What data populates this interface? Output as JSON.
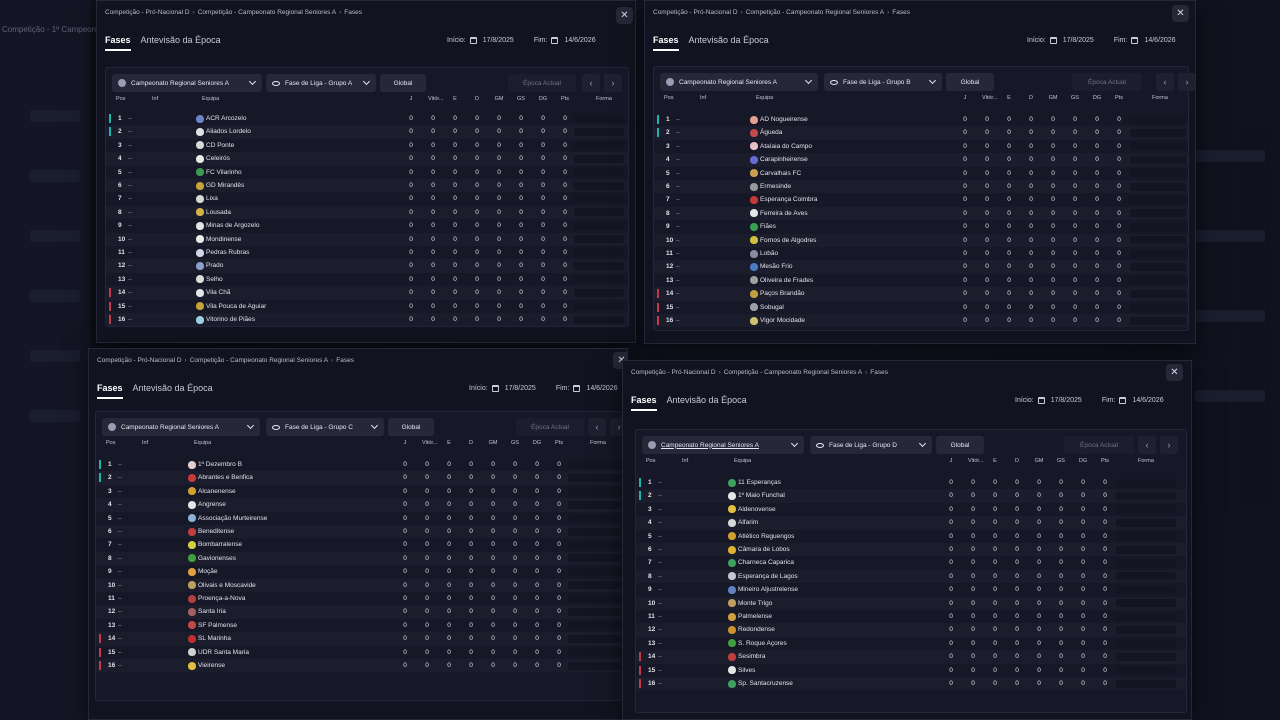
{
  "background": {
    "title_left": "Competição - 1º Campeonato"
  },
  "stats_headers": [
    "Pos",
    "Inf",
    "Equipa",
    "J",
    "Vitór...",
    "E",
    "D",
    "GM",
    "GS",
    "DG",
    "Pts",
    "Forma"
  ],
  "windows": [
    {
      "breadcrumb": [
        "Competição - Pró-Nacional D",
        "Competição - Campeonato Regional Seniores A",
        "Fases"
      ],
      "tabs": [
        "Fases",
        "Antevisão da Época"
      ],
      "start_label": "Início:",
      "start_date": "17/8/2025",
      "end_label": "Fim:",
      "end_date": "14/6/2026",
      "competition": "Campeonato Regional Seniores A",
      "stage": "Fase de Liga - Grupo A",
      "scope": "Global",
      "season": "Época Actual",
      "rows": [
        {
          "pos": "1",
          "team": "ACR Arcozelo",
          "zone": "prom",
          "crest": "#6b83c9"
        },
        {
          "pos": "2",
          "team": "Aliados Lordelo",
          "zone": "prom",
          "crest": "#e0e0e0"
        },
        {
          "pos": "3",
          "team": "CD Ponte",
          "zone": "",
          "crest": "#d8d8d8"
        },
        {
          "pos": "4",
          "team": "Celeirós",
          "zone": "",
          "crest": "#eaeaea"
        },
        {
          "pos": "5",
          "team": "FC Vilarinho",
          "zone": "",
          "crest": "#3c9a4f"
        },
        {
          "pos": "6",
          "team": "GD Mirandês",
          "zone": "",
          "crest": "#c9a23a"
        },
        {
          "pos": "7",
          "team": "Lixa",
          "zone": "",
          "crest": "#d9d9d9"
        },
        {
          "pos": "8",
          "team": "Lousada",
          "zone": "",
          "crest": "#d4b24a"
        },
        {
          "pos": "9",
          "team": "Minas de Argozelo",
          "zone": "",
          "crest": "#e3e3e3"
        },
        {
          "pos": "10",
          "team": "Mondinense",
          "zone": "",
          "crest": "#ededed"
        },
        {
          "pos": "11",
          "team": "Pedras Rubras",
          "zone": "",
          "crest": "#cfd6e6"
        },
        {
          "pos": "12",
          "team": "Prado",
          "zone": "",
          "crest": "#8aa0c8"
        },
        {
          "pos": "13",
          "team": "Selho",
          "zone": "",
          "crest": "#dcdcdc"
        },
        {
          "pos": "14",
          "team": "Vila Chã",
          "zone": "rel",
          "crest": "#e6e6e6"
        },
        {
          "pos": "15",
          "team": "Vila Pouca de Aguiar",
          "zone": "rel",
          "crest": "#c8a13c"
        },
        {
          "pos": "16",
          "team": "Vitorino de Piães",
          "zone": "rel",
          "crest": "#9fd0e0"
        }
      ]
    },
    {
      "breadcrumb": [
        "Competição - Pró-Nacional D",
        "Competição - Campeonato Regional Seniores A",
        "Fases"
      ],
      "tabs": [
        "Fases",
        "Antevisão da Época"
      ],
      "start_label": "Início:",
      "start_date": "17/8/2025",
      "end_label": "Fim:",
      "end_date": "14/6/2026",
      "competition": "Campeonato Regional Seniores A",
      "stage": "Fase de Liga - Grupo B",
      "scope": "Global",
      "season": "Época Actual",
      "rows": [
        {
          "pos": "1",
          "team": "AD Nogueirense",
          "zone": "prom",
          "crest": "#e4a090"
        },
        {
          "pos": "2",
          "team": "Águeda",
          "zone": "prom",
          "crest": "#c24a4a"
        },
        {
          "pos": "3",
          "team": "Ataíaia do Campo",
          "zone": "",
          "crest": "#e6c0c8"
        },
        {
          "pos": "4",
          "team": "Carapinheirense",
          "zone": "",
          "crest": "#6a6ad0"
        },
        {
          "pos": "5",
          "team": "Carvalhais FC",
          "zone": "",
          "crest": "#c8a050"
        },
        {
          "pos": "6",
          "team": "Ermesinde",
          "zone": "",
          "crest": "#9a9a9a"
        },
        {
          "pos": "7",
          "team": "Esperança Coimbra",
          "zone": "",
          "crest": "#c23a3a"
        },
        {
          "pos": "8",
          "team": "Ferreira de Aves",
          "zone": "",
          "crest": "#e6e6e6"
        },
        {
          "pos": "9",
          "team": "Fiães",
          "zone": "",
          "crest": "#3aa050"
        },
        {
          "pos": "10",
          "team": "Fornos de Algodres",
          "zone": "",
          "crest": "#d0c040"
        },
        {
          "pos": "11",
          "team": "Lobão",
          "zone": "",
          "crest": "#8a8aa0"
        },
        {
          "pos": "12",
          "team": "Mesão Frio",
          "zone": "",
          "crest": "#4a7ac0"
        },
        {
          "pos": "13",
          "team": "Oliveira de Frades",
          "zone": "",
          "crest": "#a0a0a0"
        },
        {
          "pos": "14",
          "team": "Paços Brandão",
          "zone": "rel",
          "crest": "#c0a040"
        },
        {
          "pos": "15",
          "team": "Sobugal",
          "zone": "rel",
          "crest": "#9aa0a8"
        },
        {
          "pos": "16",
          "team": "Vigor Mocidade",
          "zone": "rel",
          "crest": "#d0c070"
        }
      ]
    },
    {
      "breadcrumb": [
        "Competição - Pró-Nacional D",
        "Competição - Campeonato Regional Seniores A",
        "Fases"
      ],
      "tabs": [
        "Fases",
        "Antevisão da Época"
      ],
      "start_label": "Início:",
      "start_date": "17/8/2025",
      "end_label": "Fim:",
      "end_date": "14/6/2026",
      "competition": "Campeonato Regional Seniores A",
      "stage": "Fase de Liga - Grupo C",
      "scope": "Global",
      "season": "Época Actual",
      "rows": [
        {
          "pos": "1",
          "team": "1º Dezembro B",
          "zone": "prom",
          "crest": "#e0d0d0"
        },
        {
          "pos": "2",
          "team": "Abrantes e Benfica",
          "zone": "prom",
          "crest": "#c83a3a"
        },
        {
          "pos": "3",
          "team": "Alcanenense",
          "zone": "",
          "crest": "#d0a030"
        },
        {
          "pos": "4",
          "team": "Angrense",
          "zone": "",
          "crest": "#e6e6e6"
        },
        {
          "pos": "5",
          "team": "Associação Murteirense",
          "zone": "",
          "crest": "#8ab0d8"
        },
        {
          "pos": "6",
          "team": "Beneditense",
          "zone": "",
          "crest": "#c04040"
        },
        {
          "pos": "7",
          "team": "Bombarralense",
          "zone": "",
          "crest": "#d0d040"
        },
        {
          "pos": "8",
          "team": "Gavionenses",
          "zone": "",
          "crest": "#40a040"
        },
        {
          "pos": "9",
          "team": "Moçãe",
          "zone": "",
          "crest": "#e0a040"
        },
        {
          "pos": "10",
          "team": "Olivais e Moscavide",
          "zone": "",
          "crest": "#c0a060"
        },
        {
          "pos": "11",
          "team": "Proença-a-Nova",
          "zone": "",
          "crest": "#b04040"
        },
        {
          "pos": "12",
          "team": "Santa Iria",
          "zone": "",
          "crest": "#a06060"
        },
        {
          "pos": "13",
          "team": "SF Palmense",
          "zone": "",
          "crest": "#c04a4a"
        },
        {
          "pos": "14",
          "team": "SL Marinha",
          "zone": "rel",
          "crest": "#c03030"
        },
        {
          "pos": "15",
          "team": "UDR Santa Maria",
          "zone": "rel",
          "crest": "#d0d0d0"
        },
        {
          "pos": "16",
          "team": "Vieirense",
          "zone": "rel",
          "crest": "#e0c040"
        }
      ]
    },
    {
      "breadcrumb": [
        "Competição - Pró-Nacional D",
        "Competição - Campeonato Regional Seniores A",
        "Fases"
      ],
      "tabs": [
        "Fases",
        "Antevisão da Época"
      ],
      "start_label": "Início:",
      "start_date": "17/8/2025",
      "end_label": "Fim:",
      "end_date": "14/6/2026",
      "competition": "Campeonato Regional Seniores A",
      "stage": "Fase de Liga - Grupo D",
      "scope": "Global",
      "season": "Época Actual",
      "rows": [
        {
          "pos": "1",
          "team": "11 Esperanças",
          "zone": "prom",
          "crest": "#40a060"
        },
        {
          "pos": "2",
          "team": "1º Maio Funchal",
          "zone": "prom",
          "crest": "#e6e6e6"
        },
        {
          "pos": "3",
          "team": "Aldenovense",
          "zone": "",
          "crest": "#e0c040"
        },
        {
          "pos": "4",
          "team": "Alfarim",
          "zone": "",
          "crest": "#d8d8d8"
        },
        {
          "pos": "5",
          "team": "Atlético Reguengos",
          "zone": "",
          "crest": "#d0a030"
        },
        {
          "pos": "6",
          "team": "Câmara de Lobos",
          "zone": "",
          "crest": "#e0b030"
        },
        {
          "pos": "7",
          "team": "Charneca Caparica",
          "zone": "",
          "crest": "#40a060"
        },
        {
          "pos": "8",
          "team": "Esperança de Lagos",
          "zone": "",
          "crest": "#c0c8d0"
        },
        {
          "pos": "9",
          "team": "Mineiro Aljustrelense",
          "zone": "",
          "crest": "#6080c0"
        },
        {
          "pos": "10",
          "team": "Monte Trigo",
          "zone": "",
          "crest": "#c0a060"
        },
        {
          "pos": "11",
          "team": "Palmelense",
          "zone": "",
          "crest": "#d0a040"
        },
        {
          "pos": "12",
          "team": "Redondense",
          "zone": "",
          "crest": "#d09030"
        },
        {
          "pos": "13",
          "team": "S. Roque Açores",
          "zone": "",
          "crest": "#40a040"
        },
        {
          "pos": "14",
          "team": "Sesimbra",
          "zone": "rel",
          "crest": "#c04040"
        },
        {
          "pos": "15",
          "team": "Silves",
          "zone": "rel",
          "crest": "#e6e6e6"
        },
        {
          "pos": "16",
          "team": "Sp. Santacruzense",
          "zone": "rel",
          "crest": "#40a060"
        }
      ]
    }
  ]
}
